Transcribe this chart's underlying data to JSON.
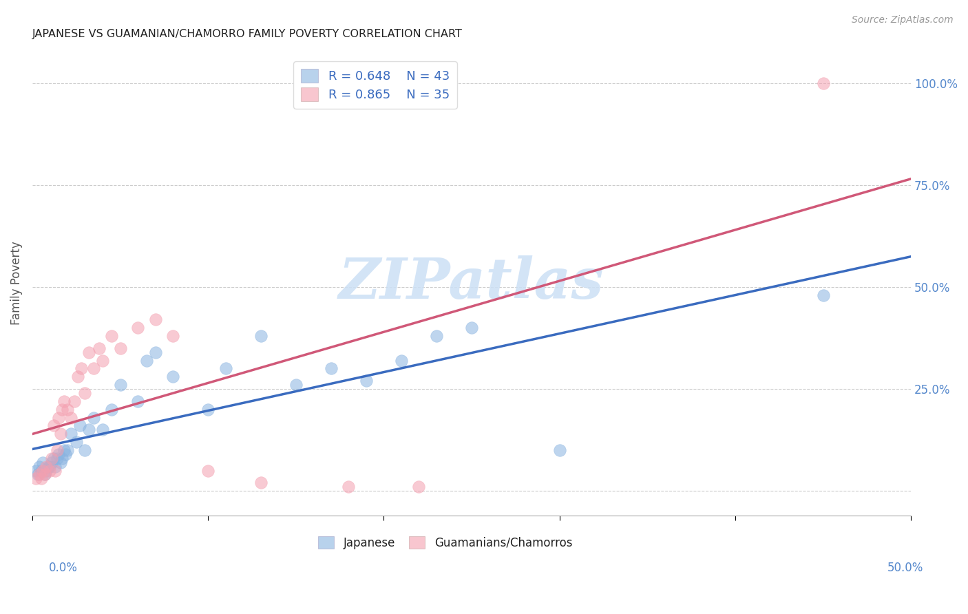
{
  "title": "JAPANESE VS GUAMANIAN/CHAMORRO FAMILY POVERTY CORRELATION CHART",
  "source": "Source: ZipAtlas.com",
  "ylabel": "Family Poverty",
  "xlim": [
    0.0,
    0.5
  ],
  "ylim": [
    -0.06,
    1.08
  ],
  "watermark": "ZIPatlas",
  "legend_r1": "R = 0.648",
  "legend_n1": "N = 43",
  "legend_r2": "R = 0.865",
  "legend_n2": "N = 35",
  "color_japanese": "#8ab4e0",
  "color_guamanian": "#f4a0b0",
  "color_line_japanese": "#3a6bbf",
  "color_line_guamanian": "#d05878",
  "japanese_x": [
    0.002,
    0.003,
    0.004,
    0.005,
    0.006,
    0.007,
    0.008,
    0.009,
    0.01,
    0.011,
    0.012,
    0.013,
    0.014,
    0.015,
    0.016,
    0.017,
    0.018,
    0.019,
    0.02,
    0.022,
    0.025,
    0.027,
    0.03,
    0.032,
    0.035,
    0.04,
    0.045,
    0.05,
    0.06,
    0.065,
    0.07,
    0.08,
    0.1,
    0.11,
    0.13,
    0.15,
    0.17,
    0.19,
    0.21,
    0.23,
    0.25,
    0.3,
    0.45
  ],
  "japanese_y": [
    0.05,
    0.04,
    0.06,
    0.05,
    0.07,
    0.04,
    0.05,
    0.06,
    0.06,
    0.07,
    0.08,
    0.06,
    0.08,
    0.09,
    0.07,
    0.08,
    0.1,
    0.09,
    0.1,
    0.14,
    0.12,
    0.16,
    0.1,
    0.15,
    0.18,
    0.15,
    0.2,
    0.26,
    0.22,
    0.32,
    0.34,
    0.28,
    0.2,
    0.3,
    0.38,
    0.26,
    0.3,
    0.27,
    0.32,
    0.38,
    0.4,
    0.1,
    0.48
  ],
  "guamanian_x": [
    0.002,
    0.004,
    0.005,
    0.006,
    0.007,
    0.008,
    0.01,
    0.011,
    0.012,
    0.013,
    0.014,
    0.015,
    0.016,
    0.017,
    0.018,
    0.02,
    0.022,
    0.024,
    0.026,
    0.028,
    0.03,
    0.032,
    0.035,
    0.038,
    0.04,
    0.045,
    0.05,
    0.06,
    0.07,
    0.08,
    0.1,
    0.13,
    0.18,
    0.22,
    0.45
  ],
  "guamanian_y": [
    0.03,
    0.04,
    0.03,
    0.05,
    0.04,
    0.06,
    0.05,
    0.08,
    0.16,
    0.05,
    0.1,
    0.18,
    0.14,
    0.2,
    0.22,
    0.2,
    0.18,
    0.22,
    0.28,
    0.3,
    0.24,
    0.34,
    0.3,
    0.35,
    0.32,
    0.38,
    0.35,
    0.4,
    0.42,
    0.38,
    0.05,
    0.02,
    0.01,
    0.01,
    1.0
  ],
  "background_color": "#ffffff",
  "grid_color": "#cccccc"
}
